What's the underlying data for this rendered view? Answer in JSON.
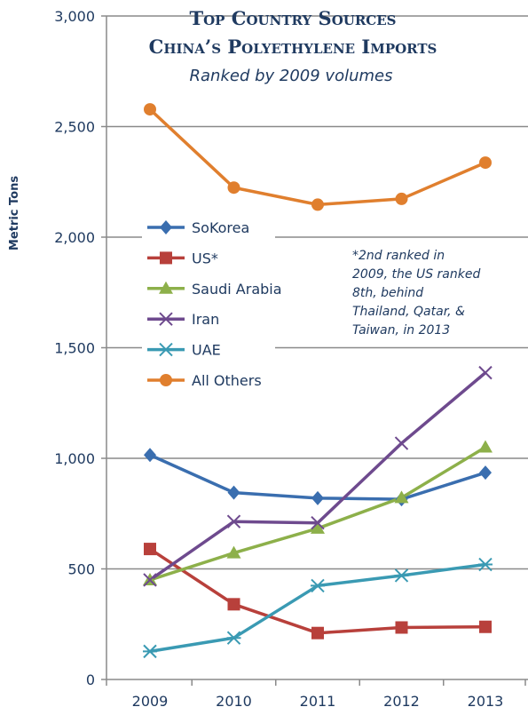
{
  "chart_data": {
    "type": "line",
    "title_line1": "Top Country Sources",
    "title_line2": "China’s Polyethylene Imports",
    "subtitle": "Ranked by 2009 volumes",
    "ylabel": "Metric Tons",
    "xlabel": "",
    "ylim": [
      0,
      3000
    ],
    "yticks": [
      0,
      500,
      1000,
      1500,
      2000,
      2500,
      3000
    ],
    "ytick_labels": [
      "0",
      "500",
      "1,000",
      "1,500",
      "2,000",
      "2,500",
      "3,000"
    ],
    "categories": [
      "2009",
      "2010",
      "2011",
      "2012",
      "2013"
    ],
    "grid": "horizontal",
    "legend_position": "left, mid-chart",
    "series": [
      {
        "name": "SoKorea",
        "color": "#3a6eaf",
        "marker": "diamond",
        "values": [
          1015,
          845,
          820,
          815,
          935
        ]
      },
      {
        "name": "US*",
        "color": "#b8403b",
        "marker": "square",
        "values": [
          590,
          340,
          210,
          235,
          238
        ]
      },
      {
        "name": "Saudi Arabia",
        "color": "#8db04a",
        "marker": "triangle",
        "values": [
          450,
          572,
          683,
          822,
          1050
        ]
      },
      {
        "name": "Iran",
        "color": "#6e4a8e",
        "marker": "x",
        "values": [
          450,
          714,
          708,
          1068,
          1387
        ]
      },
      {
        "name": "UAE",
        "color": "#3a9ab3",
        "marker": "star",
        "values": [
          127,
          188,
          424,
          470,
          520
        ]
      },
      {
        "name": "All Others",
        "color": "#e07f2e",
        "marker": "circle",
        "values": [
          2578,
          2224,
          2147,
          2173,
          2337
        ]
      }
    ],
    "annotation": [
      "*2nd ranked in",
      "2009, the US ranked",
      "8th, behind",
      "Thailand, Qatar, &",
      "Taiwan, in 2013"
    ]
  }
}
